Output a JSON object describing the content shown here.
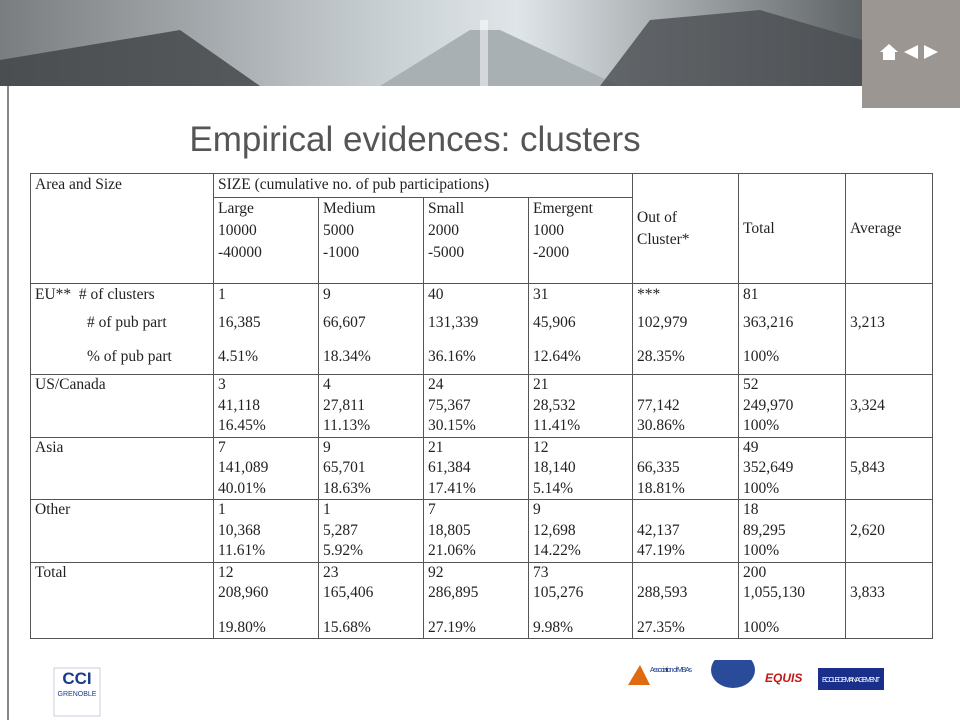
{
  "title": "Empirical evidences: clusters",
  "table": {
    "header": {
      "area": "Area and Size",
      "size": "SIZE (cumulative no. of pub participations)",
      "size_classes": [
        [
          "Large",
          "10000",
          "-40000"
        ],
        [
          "Medium",
          "5000",
          "-1000"
        ],
        [
          "Small",
          "2000",
          "-5000"
        ],
        [
          "Emergent",
          "1000",
          "-2000"
        ]
      ],
      "out_of_cluster": [
        "Out of",
        "Cluster*"
      ],
      "total": "Total",
      "average": "Average"
    },
    "rows": [
      {
        "lines": [
          [
            "EU**  # of clusters",
            "1",
            "9",
            "40",
            "31",
            "***",
            "81",
            null
          ],
          [
            "# of pub part",
            "16,385",
            "66,607",
            "131,339",
            "45,906",
            "102,979",
            "363,216",
            "3,213"
          ],
          [
            "% of pub part",
            "4.51%",
            "18.34%",
            "36.16%",
            "12.64%",
            "28.35%",
            "100%",
            null
          ]
        ]
      },
      {
        "lines": [
          [
            "US/Canada",
            "3",
            "4",
            "24",
            "21",
            null,
            "52",
            null
          ],
          [
            null,
            "41,118",
            "27,811",
            "75,367",
            "28,532",
            "77,142",
            "249,970",
            "3,324"
          ],
          [
            null,
            "16.45%",
            "11.13%",
            "30.15%",
            "11.41%",
            "30.86%",
            "100%",
            null
          ]
        ]
      },
      {
        "lines": [
          [
            "Asia",
            "7",
            "9",
            "21",
            "12",
            null,
            "49",
            null
          ],
          [
            null,
            "141,089",
            "65,701",
            "61,384",
            "18,140",
            "66,335",
            "352,649",
            "5,843"
          ],
          [
            null,
            "40.01%",
            "18.63%",
            "17.41%",
            "5.14%",
            "18.81%",
            "100%",
            null
          ]
        ]
      },
      {
        "lines": [
          [
            "Other",
            "1",
            "1",
            "7",
            "9",
            null,
            "18",
            null
          ],
          [
            null,
            "10,368",
            "5,287",
            "18,805",
            "12,698",
            "42,137",
            "89,295",
            "2,620"
          ],
          [
            null,
            "11.61%",
            "5.92%",
            "21.06%",
            "14.22%",
            "47.19%",
            "100%",
            null
          ]
        ]
      },
      {
        "lines": [
          [
            "Total",
            "12",
            "23",
            "92",
            "73",
            null,
            "200",
            null
          ],
          [
            null,
            "208,960",
            "165,406",
            "286,895",
            "105,276",
            "288,593",
            "1,055,130",
            "3,833"
          ],
          [
            null,
            "19.80%",
            "15.68%",
            "27.19%",
            "9.98%",
            "27.35%",
            "100%",
            null
          ]
        ]
      }
    ]
  },
  "footer": {
    "cci": "CCI",
    "cci_sub": "GRENOBLE",
    "amba": "Association of MBAs",
    "equis": "EQUIS",
    "ecole": "ECOLE DE MANAGEMENT"
  }
}
